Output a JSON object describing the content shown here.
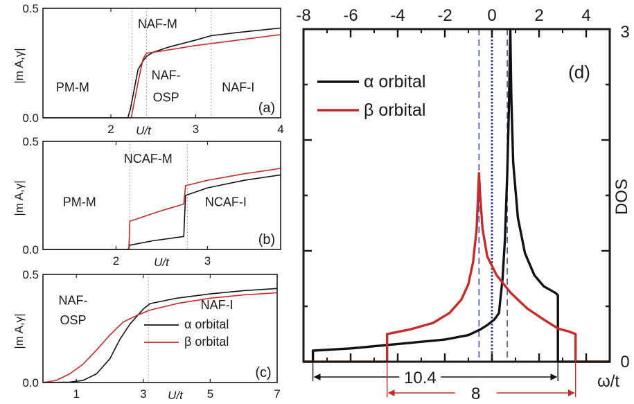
{
  "colors": {
    "alpha": "#111111",
    "beta": "#c62a2a",
    "guide_dashed": "#3a4fa8",
    "guide_dotted": "#2f3a8f",
    "divider": "#8a8a8a"
  },
  "chart_data": [
    {
      "id": "a",
      "type": "line",
      "panel_label": "(a)",
      "xlabel": "U/t",
      "ylabel": "|m A,γ|",
      "xlim": [
        1.2,
        4.0
      ],
      "ylim": [
        0,
        0.5
      ],
      "x_ticks": [
        2,
        3,
        4
      ],
      "y_ticks": [
        "0.0",
        "0.5"
      ],
      "phase_boundaries": [
        2.25,
        2.42,
        3.18
      ],
      "regions": [
        {
          "label": "PM-M",
          "x": 1.55,
          "y": 0.12
        },
        {
          "label": "NAF-M",
          "x": 2.55,
          "y": 0.41
        },
        {
          "label": "NAF-",
          "x": 2.65,
          "y": 0.175
        },
        {
          "label": "OSP",
          "x": 2.65,
          "y": 0.075
        },
        {
          "label": "NAF-I",
          "x": 3.5,
          "y": 0.12
        }
      ],
      "series": [
        {
          "name": "α orbital",
          "color_key": "alpha",
          "points": [
            [
              1.2,
              0
            ],
            [
              2.2,
              0
            ],
            [
              2.23,
              0.04
            ],
            [
              2.28,
              0.14
            ],
            [
              2.32,
              0.22
            ],
            [
              2.38,
              0.26
            ],
            [
              2.42,
              0.28
            ],
            [
              2.5,
              0.3
            ],
            [
              2.7,
              0.325
            ],
            [
              3.0,
              0.355
            ],
            [
              3.18,
              0.375
            ],
            [
              3.5,
              0.39
            ],
            [
              4.0,
              0.41
            ]
          ]
        },
        {
          "name": "β orbital",
          "color_key": "beta",
          "points": [
            [
              1.2,
              0
            ],
            [
              2.24,
              0
            ],
            [
              2.27,
              0.06
            ],
            [
              2.33,
              0.18
            ],
            [
              2.38,
              0.27
            ],
            [
              2.42,
              0.295
            ],
            [
              2.6,
              0.305
            ],
            [
              3.0,
              0.33
            ],
            [
              3.5,
              0.355
            ],
            [
              4.0,
              0.38
            ]
          ]
        }
      ]
    },
    {
      "id": "b",
      "type": "line",
      "panel_label": "(b)",
      "xlabel": "U/t",
      "ylabel": "|m A,γ|",
      "xlim": [
        1.2,
        3.8
      ],
      "ylim": [
        0,
        0.5
      ],
      "x_ticks": [
        2,
        3
      ],
      "y_ticks": [
        "0.0",
        "0.5"
      ],
      "phase_boundaries": [
        2.15,
        2.78
      ],
      "regions": [
        {
          "label": "NCAF-M",
          "x": 2.35,
          "y": 0.4
        },
        {
          "label": "PM-M",
          "x": 1.6,
          "y": 0.2
        },
        {
          "label": "NCAF-I",
          "x": 3.2,
          "y": 0.2
        }
      ],
      "series": [
        {
          "name": "α orbital",
          "color_key": "alpha",
          "points": [
            [
              1.2,
              0
            ],
            [
              2.13,
              0
            ],
            [
              2.15,
              0.02
            ],
            [
              2.4,
              0.04
            ],
            [
              2.74,
              0.06
            ],
            [
              2.76,
              0.25
            ],
            [
              3.0,
              0.285
            ],
            [
              3.4,
              0.32
            ],
            [
              3.8,
              0.345
            ]
          ]
        },
        {
          "name": "β orbital",
          "color_key": "beta",
          "points": [
            [
              1.2,
              0
            ],
            [
              2.14,
              0
            ],
            [
              2.15,
              0.13
            ],
            [
              2.5,
              0.18
            ],
            [
              2.74,
              0.21
            ],
            [
              2.76,
              0.295
            ],
            [
              3.0,
              0.32
            ],
            [
              3.4,
              0.35
            ],
            [
              3.8,
              0.375
            ]
          ]
        }
      ]
    },
    {
      "id": "c",
      "type": "line",
      "panel_label": "(c)",
      "xlabel": "U/t",
      "ylabel": "|m A,γ|",
      "xlim": [
        0,
        7
      ],
      "ylim": [
        0,
        0.5
      ],
      "x_ticks": [
        1,
        3,
        5,
        7
      ],
      "y_ticks": [
        "0.0",
        "0.5"
      ],
      "phase_boundaries": [
        3.15
      ],
      "regions": [
        {
          "label": "NAF-",
          "x": 0.9,
          "y": 0.36
        },
        {
          "label": "OSP",
          "x": 0.9,
          "y": 0.27
        },
        {
          "label": "NAF-I",
          "x": 5.2,
          "y": 0.34
        }
      ],
      "legend": [
        "α orbital",
        "β orbital"
      ],
      "series": [
        {
          "name": "α orbital",
          "color_key": "alpha",
          "points": [
            [
              0,
              0
            ],
            [
              0.8,
              0.002
            ],
            [
              1.2,
              0.01
            ],
            [
              1.6,
              0.04
            ],
            [
              2.0,
              0.11
            ],
            [
              2.3,
              0.2
            ],
            [
              2.6,
              0.27
            ],
            [
              3.0,
              0.34
            ],
            [
              3.2,
              0.365
            ],
            [
              4.0,
              0.39
            ],
            [
              5.0,
              0.41
            ],
            [
              6.0,
              0.425
            ],
            [
              7.0,
              0.435
            ]
          ]
        },
        {
          "name": "β orbital",
          "color_key": "beta",
          "points": [
            [
              0,
              0
            ],
            [
              0.4,
              0.01
            ],
            [
              0.8,
              0.04
            ],
            [
              1.2,
              0.085
            ],
            [
              1.6,
              0.15
            ],
            [
              2.0,
              0.22
            ],
            [
              2.4,
              0.28
            ],
            [
              2.8,
              0.31
            ],
            [
              3.2,
              0.335
            ],
            [
              4.0,
              0.365
            ],
            [
              5.0,
              0.39
            ],
            [
              6.0,
              0.405
            ],
            [
              7.0,
              0.415
            ]
          ]
        }
      ]
    },
    {
      "id": "d",
      "type": "line",
      "panel_label": "(d)",
      "xlabel": "ω/t",
      "ylabel": "DOS",
      "xlim": [
        -8,
        5
      ],
      "ylim": [
        0,
        3
      ],
      "x_ticks": [
        -8,
        -6,
        -4,
        -2,
        0,
        2,
        4
      ],
      "y_ticks": [
        "0",
        "3"
      ],
      "guides": {
        "dashed": [
          -0.55,
          0.65
        ],
        "dotted": [
          0
        ]
      },
      "bandwidths": [
        {
          "label": "10.4",
          "from": -7.6,
          "to": 2.8,
          "color_key": "alpha"
        },
        {
          "label": "8",
          "from": -4.45,
          "to": 3.55,
          "color_key": "beta"
        }
      ],
      "legend": [
        "α orbital",
        "β orbital"
      ],
      "series": [
        {
          "name": "α orbital",
          "color_key": "alpha",
          "points": [
            [
              -8,
              0
            ],
            [
              -7.6,
              0
            ],
            [
              -7.6,
              0.1
            ],
            [
              -6,
              0.12
            ],
            [
              -4,
              0.16
            ],
            [
              -2,
              0.2
            ],
            [
              -1,
              0.24
            ],
            [
              -0.5,
              0.29
            ],
            [
              -0.2,
              0.33
            ],
            [
              0.1,
              0.38
            ],
            [
              0.3,
              0.44
            ],
            [
              0.35,
              0.55
            ],
            [
              0.45,
              0.75
            ],
            [
              0.55,
              1.1
            ],
            [
              0.65,
              1.7
            ],
            [
              0.72,
              2.3
            ],
            [
              0.78,
              3.0
            ],
            [
              0.82,
              2.4
            ],
            [
              0.9,
              1.8
            ],
            [
              1.1,
              1.3
            ],
            [
              1.4,
              0.98
            ],
            [
              1.8,
              0.78
            ],
            [
              2.2,
              0.68
            ],
            [
              2.7,
              0.62
            ],
            [
              2.8,
              0.6
            ],
            [
              2.8,
              0
            ],
            [
              5,
              0
            ]
          ]
        },
        {
          "name": "β orbital",
          "color_key": "beta",
          "points": [
            [
              -8,
              0
            ],
            [
              -4.45,
              0
            ],
            [
              -4.45,
              0.25
            ],
            [
              -3.5,
              0.29
            ],
            [
              -2.5,
              0.35
            ],
            [
              -1.8,
              0.44
            ],
            [
              -1.3,
              0.56
            ],
            [
              -1.0,
              0.7
            ],
            [
              -0.8,
              0.9
            ],
            [
              -0.65,
              1.2
            ],
            [
              -0.58,
              1.55
            ],
            [
              -0.55,
              1.7
            ],
            [
              -0.5,
              1.5
            ],
            [
              -0.4,
              1.2
            ],
            [
              -0.2,
              0.95
            ],
            [
              0.2,
              0.78
            ],
            [
              0.8,
              0.62
            ],
            [
              1.5,
              0.48
            ],
            [
              2.2,
              0.38
            ],
            [
              2.8,
              0.3
            ],
            [
              3.3,
              0.27
            ],
            [
              3.55,
              0.25
            ],
            [
              3.55,
              0
            ],
            [
              5,
              0
            ]
          ]
        }
      ]
    }
  ]
}
